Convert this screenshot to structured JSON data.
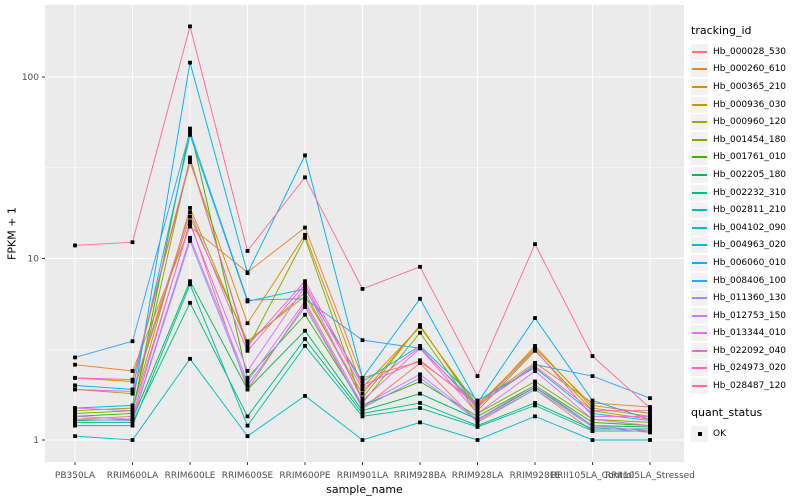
{
  "chart_data": {
    "type": "line",
    "title": "",
    "xlabel": "sample_name",
    "ylabel": "FPKM + 1",
    "y_scale": "log10",
    "y_ticks": [
      1,
      10,
      100
    ],
    "y_tick_labels": [
      "1",
      "10",
      "100"
    ],
    "y_minor_ticks": [
      3.1623,
      31.623
    ],
    "grid": "on",
    "legend_position": "right",
    "marker": {
      "shape": "square",
      "color": "#000000",
      "size": 3.8
    },
    "colors": {
      "panel_bg": "#EBEBEB",
      "grid": "#FFFFFF",
      "tick_text": "#4D4D4D",
      "tick_mark": "#333333"
    },
    "categories": [
      "PB350LA",
      "RRIM600LA",
      "RRIM600LE",
      "RRIM600SE",
      "RRIM600PE",
      "RRIM901LA",
      "RRIM928BA",
      "RRIM928LA",
      "RRIM928LE",
      "RRII105LA_Control",
      "RRII105LA_Stressed"
    ],
    "series": [
      {
        "name": "Hb_000028_530",
        "color": "#F8766D",
        "values": [
          1.3,
          1.35,
          16.0,
          1.9,
          5.6,
          1.5,
          2.65,
          1.25,
          1.9,
          1.12,
          1.12
        ]
      },
      {
        "name": "Hb_000260_610",
        "color": "#EA8331",
        "values": [
          2.6,
          2.4,
          15.0,
          8.4,
          14.8,
          2.2,
          2.7,
          1.6,
          2.66,
          1.6,
          1.52
        ]
      },
      {
        "name": "Hb_000365_210",
        "color": "#D89000",
        "values": [
          2.2,
          2.1,
          34.0,
          4.4,
          13.5,
          1.95,
          4.2,
          1.55,
          3.2,
          1.55,
          1.4
        ]
      },
      {
        "name": "Hb_000936_030",
        "color": "#C09B00",
        "values": [
          1.9,
          1.8,
          17.0,
          3.5,
          6.2,
          1.8,
          4.25,
          1.5,
          3.3,
          1.5,
          1.35
        ]
      },
      {
        "name": "Hb_000960_120",
        "color": "#A3A500",
        "values": [
          1.45,
          1.5,
          19.0,
          3.4,
          6.5,
          1.7,
          4.3,
          1.45,
          3.1,
          1.45,
          1.3
        ]
      },
      {
        "name": "Hb_001454_180",
        "color": "#7CAE00",
        "values": [
          1.4,
          1.45,
          36.0,
          3.2,
          13.0,
          1.6,
          3.9,
          1.4,
          2.1,
          1.3,
          1.25
        ]
      },
      {
        "name": "Hb_001761_010",
        "color": "#39B600",
        "values": [
          1.35,
          1.4,
          52.0,
          2.2,
          4.9,
          1.55,
          2.1,
          1.35,
          2.0,
          1.25,
          1.2
        ]
      },
      {
        "name": "Hb_002205_180",
        "color": "#00BB4E",
        "values": [
          1.28,
          1.3,
          7.5,
          1.9,
          4.0,
          1.45,
          1.8,
          1.3,
          1.95,
          1.2,
          1.18
        ]
      },
      {
        "name": "Hb_002232_310",
        "color": "#00BF7D",
        "values": [
          1.25,
          1.25,
          5.7,
          1.35,
          3.6,
          1.4,
          1.6,
          1.2,
          1.6,
          1.15,
          1.15
        ]
      },
      {
        "name": "Hb_002811_210",
        "color": "#00C1A3",
        "values": [
          1.2,
          1.2,
          7.2,
          1.2,
          3.3,
          1.35,
          1.5,
          1.18,
          1.55,
          1.12,
          1.12
        ]
      },
      {
        "name": "Hb_004102_090",
        "color": "#00BFC4",
        "values": [
          1.05,
          1.0,
          2.8,
          1.05,
          1.75,
          1.0,
          1.25,
          1.0,
          1.35,
          1.0,
          1.0
        ]
      },
      {
        "name": "Hb_004963_020",
        "color": "#00BAE0",
        "values": [
          2.0,
          1.9,
          48.0,
          5.8,
          6.8,
          2.1,
          3.3,
          1.65,
          2.5,
          1.4,
          1.28
        ]
      },
      {
        "name": "Hb_006060_010",
        "color": "#00B0F6",
        "values": [
          1.5,
          1.55,
          120.0,
          8.3,
          37.0,
          2.2,
          6.0,
          1.6,
          4.7,
          1.65,
          1.3
        ]
      },
      {
        "name": "Hb_008406_100",
        "color": "#35A2FF",
        "values": [
          2.85,
          3.5,
          50.0,
          5.9,
          6.0,
          3.55,
          3.2,
          1.55,
          2.6,
          2.25,
          1.7
        ]
      },
      {
        "name": "Hb_011360_130",
        "color": "#9590FF",
        "values": [
          1.3,
          1.28,
          12.5,
          2.0,
          5.4,
          1.5,
          2.2,
          1.28,
          1.9,
          1.18,
          1.1
        ]
      },
      {
        "name": "Hb_012753_150",
        "color": "#C77CFF",
        "values": [
          1.35,
          1.3,
          13.0,
          2.1,
          5.8,
          1.55,
          2.3,
          1.3,
          2.0,
          1.2,
          1.12
        ]
      },
      {
        "name": "Hb_013344_010",
        "color": "#E76BF3",
        "values": [
          1.5,
          1.45,
          15.5,
          2.4,
          7.0,
          1.65,
          3.2,
          1.4,
          2.4,
          1.3,
          1.2
        ]
      },
      {
        "name": "Hb_022092_040",
        "color": "#FA62DB",
        "values": [
          1.9,
          1.85,
          18.0,
          3.1,
          7.2,
          1.9,
          3.25,
          1.5,
          3.15,
          1.35,
          1.35
        ]
      },
      {
        "name": "Hb_024973_020",
        "color": "#FF62BC",
        "values": [
          2.2,
          2.15,
          35.0,
          3.3,
          7.5,
          2.0,
          2.75,
          1.55,
          2.55,
          1.45,
          1.45
        ]
      },
      {
        "name": "Hb_028487_120",
        "color": "#FF6A98",
        "values": [
          11.8,
          12.3,
          190.0,
          11.0,
          28.0,
          6.8,
          9.0,
          2.25,
          12.0,
          2.9,
          1.5
        ]
      }
    ]
  },
  "legend": {
    "tracking_title": "tracking_id",
    "quant_title": "quant_status",
    "quant_entries": [
      {
        "label": "OK"
      }
    ]
  }
}
